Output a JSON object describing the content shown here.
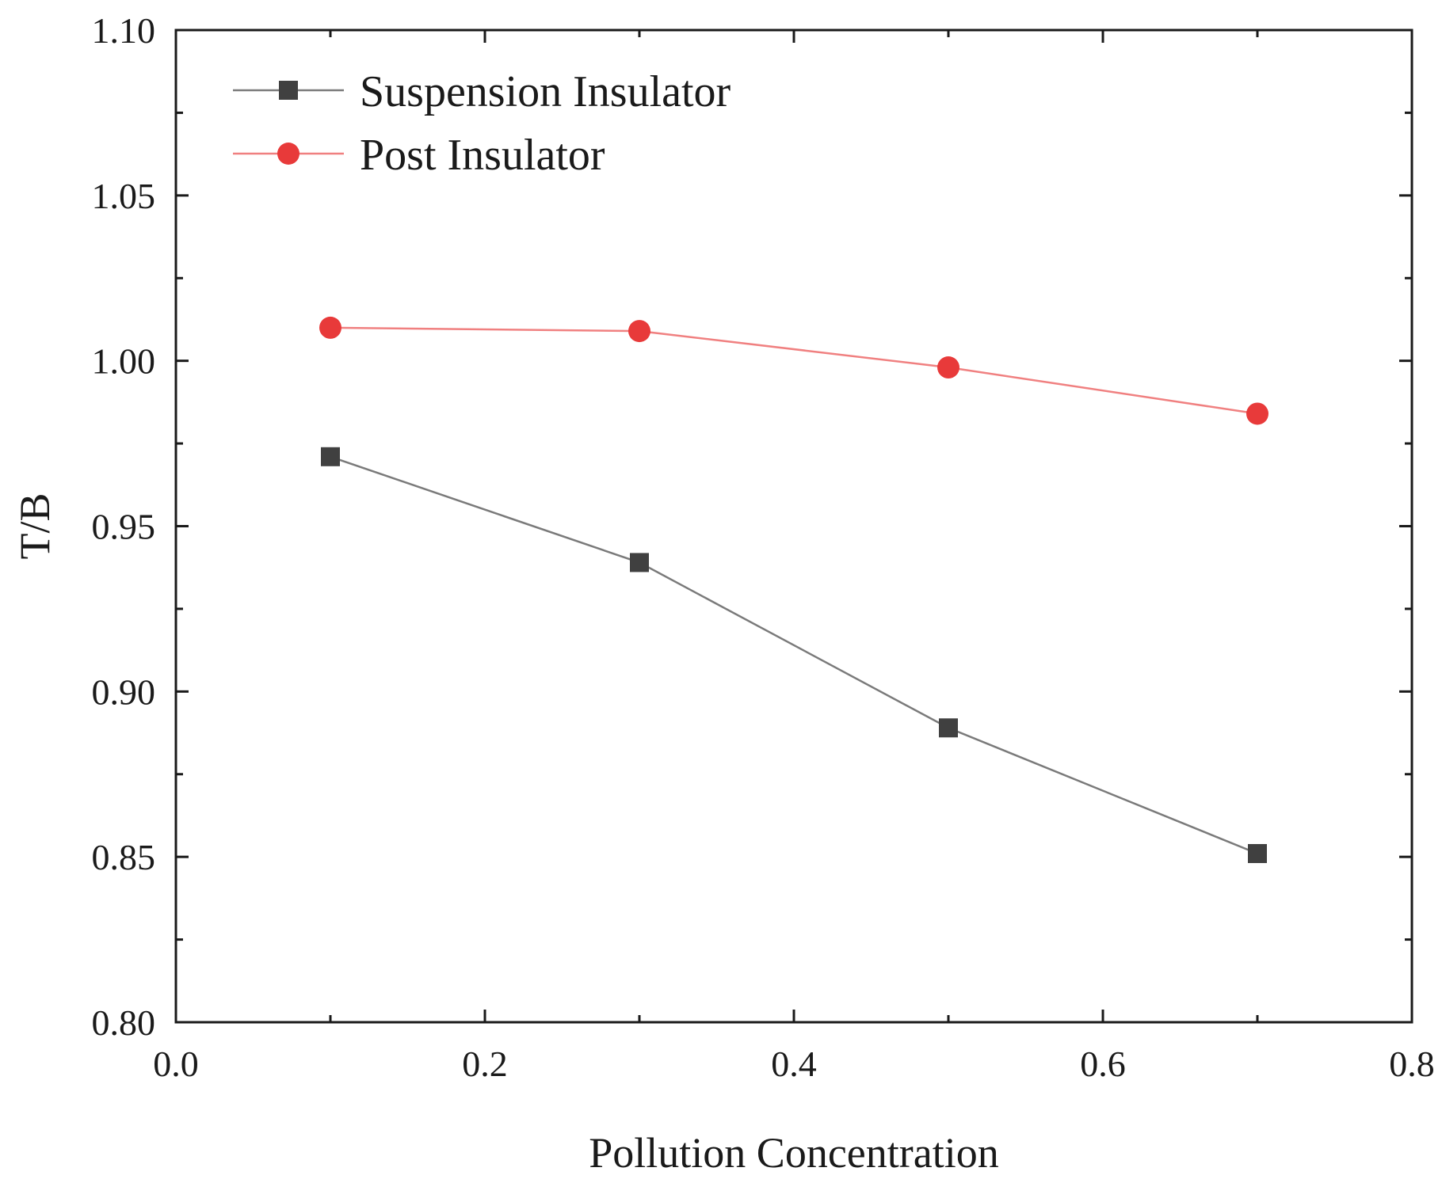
{
  "chart_data": {
    "type": "line",
    "title": "",
    "xlabel": "Pollution Concentration",
    "ylabel": "T/B",
    "xlim": [
      0.0,
      0.8
    ],
    "ylim": [
      0.8,
      1.1
    ],
    "grid": false,
    "legend_position": "top-left",
    "x_ticks": [
      0.0,
      0.2,
      0.4,
      0.6,
      0.8
    ],
    "x_tick_labels": [
      "0.0",
      "0.2",
      "0.4",
      "0.6",
      "0.8"
    ],
    "y_ticks": [
      0.8,
      0.85,
      0.9,
      0.95,
      1.0,
      1.05,
      1.1
    ],
    "y_tick_labels": [
      "0.80",
      "0.85",
      "0.90",
      "0.95",
      "1.00",
      "1.05",
      "1.10"
    ],
    "x": [
      0.1,
      0.3,
      0.5,
      0.7
    ],
    "series": [
      {
        "name": "Suspension Insulator",
        "marker": "square",
        "color": "#404040",
        "line_color": "#7a7a7a",
        "values": [
          0.971,
          0.939,
          0.889,
          0.851
        ]
      },
      {
        "name": "Post Insulator",
        "marker": "circle",
        "color": "#e83a3a",
        "line_color": "#f08080",
        "values": [
          1.01,
          1.009,
          0.998,
          0.984
        ]
      }
    ]
  }
}
